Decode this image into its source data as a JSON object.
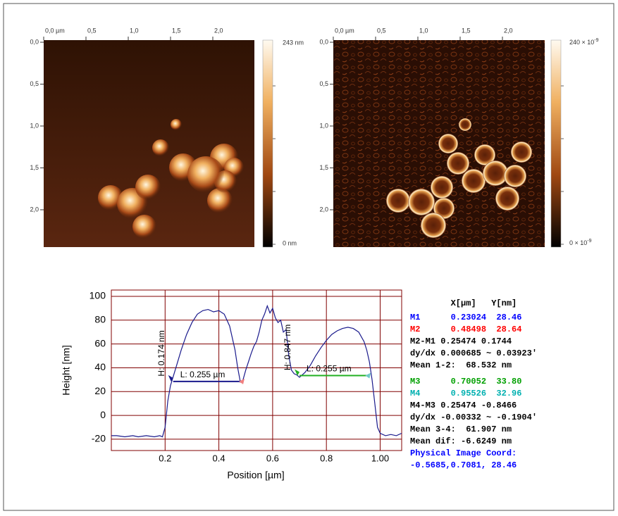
{
  "images": [
    {
      "xticks": [
        "0,0 µm",
        "0,5",
        "1,0",
        "1,5",
        "2,0"
      ],
      "yticks": [
        "0,0",
        "0,5",
        "1,0",
        "1,5",
        "2,0"
      ],
      "colorbar": {
        "top": "243 nm",
        "bottom": "0 nm"
      }
    },
    {
      "xticks": [
        "0,0 µm",
        "0,5",
        "1,0",
        "1,5",
        "2,0"
      ],
      "yticks": [
        "0,0",
        "0,5",
        "1,0",
        "1,5",
        "2,0"
      ],
      "colorbar": {
        "top": {
          "base": "240 × 10",
          "exp": "-9"
        },
        "bottom": {
          "base": "0 × 10",
          "exp": "-9"
        }
      }
    }
  ],
  "chart_data": {
    "type": "line",
    "xlabel": "Position [µm]",
    "ylabel": "Height [nm]",
    "color": "#1a1a8c",
    "grid": true,
    "grid_color": "#800000",
    "x": [
      0,
      0.02,
      0.05,
      0.08,
      0.1,
      0.13,
      0.16,
      0.18,
      0.19,
      0.2,
      0.21,
      0.22,
      0.24,
      0.26,
      0.28,
      0.3,
      0.32,
      0.34,
      0.36,
      0.38,
      0.4,
      0.42,
      0.44,
      0.46,
      0.47,
      0.48,
      0.49,
      0.5,
      0.51,
      0.52,
      0.53,
      0.54,
      0.55,
      0.56,
      0.57,
      0.58,
      0.59,
      0.6,
      0.61,
      0.62,
      0.63,
      0.64,
      0.65,
      0.66,
      0.67,
      0.68,
      0.69,
      0.7,
      0.72,
      0.74,
      0.76,
      0.78,
      0.8,
      0.82,
      0.84,
      0.86,
      0.88,
      0.9,
      0.92,
      0.94,
      0.95,
      0.96,
      0.97,
      0.98,
      0.99,
      1.0,
      1.02,
      1.04,
      1.06,
      1.08
    ],
    "values": [
      -17,
      -17,
      -18,
      -17,
      -18,
      -17,
      -18,
      -17,
      -18,
      -10,
      12,
      25,
      40,
      55,
      68,
      78,
      85,
      88,
      89,
      87,
      88,
      85,
      75,
      55,
      40,
      28,
      30,
      38,
      45,
      52,
      58,
      62,
      70,
      80,
      85,
      92,
      86,
      90,
      82,
      78,
      80,
      70,
      72,
      50,
      38,
      35,
      34,
      32,
      36,
      42,
      50,
      57,
      63,
      68,
      71,
      73,
      74,
      73,
      70,
      62,
      55,
      45,
      30,
      10,
      -10,
      -15,
      -17,
      -16,
      -17,
      -15
    ],
    "xlim": [
      0,
      1.08
    ],
    "ylim": [
      -29.5,
      105.3
    ],
    "xticks": [
      0.2,
      0.4,
      0.6,
      0.8,
      {
        "value": 1,
        "label": "1.00"
      }
    ],
    "yticks": [
      -20,
      0,
      20,
      40,
      60,
      80,
      100
    ],
    "annotations": [
      {
        "x1": 0.23,
        "x2": 0.485,
        "y": 28.5,
        "color": "#1a1a8c",
        "end_color": "#f08080",
        "text": "L: 0.255 µm",
        "height_text": "H: 0.174 nm"
      },
      {
        "x1": 0.7,
        "x2": 0.955,
        "y": 33.5,
        "color": "#22b022",
        "end_color": "#70c8c8",
        "text": "L: 0.255 µm",
        "height_text": "H: 0.847 nm"
      }
    ]
  },
  "readout": {
    "header": "        X[µm]   Y[nm]",
    "rows": [
      {
        "text": "M1      0.23024  28.46",
        "color": "#0000ff"
      },
      {
        "text": "M2      0.48498  28.64",
        "color": "#ff0000"
      },
      {
        "text": "M2-M1 0.25474 0.1744",
        "color": "#000000"
      },
      {
        "text": "dy/dx 0.000685 ~ 0.03923'",
        "color": "#000000"
      },
      {
        "text": "Mean 1-2:  68.532 nm",
        "color": "#000000"
      },
      {
        "text": "M3      0.70052  33.80",
        "color": "#00a000"
      },
      {
        "text": "M4      0.95526  32.96",
        "color": "#00b0b0"
      },
      {
        "text": "M4-M3 0.25474 -0.8466",
        "color": "#000000"
      },
      {
        "text": "dy/dx -0.00332 ~ -0.1904'",
        "color": "#000000"
      },
      {
        "text": "Mean 3-4:  61.907 nm",
        "color": "#000000"
      },
      {
        "text": "Mean dif: -6.6249 nm",
        "color": "#000000"
      },
      {
        "text": "Physical Image Coord:",
        "color": "#0000ff"
      },
      {
        "text": "-0.5685,0.7081, 28.46",
        "color": "#0000ff"
      }
    ]
  }
}
